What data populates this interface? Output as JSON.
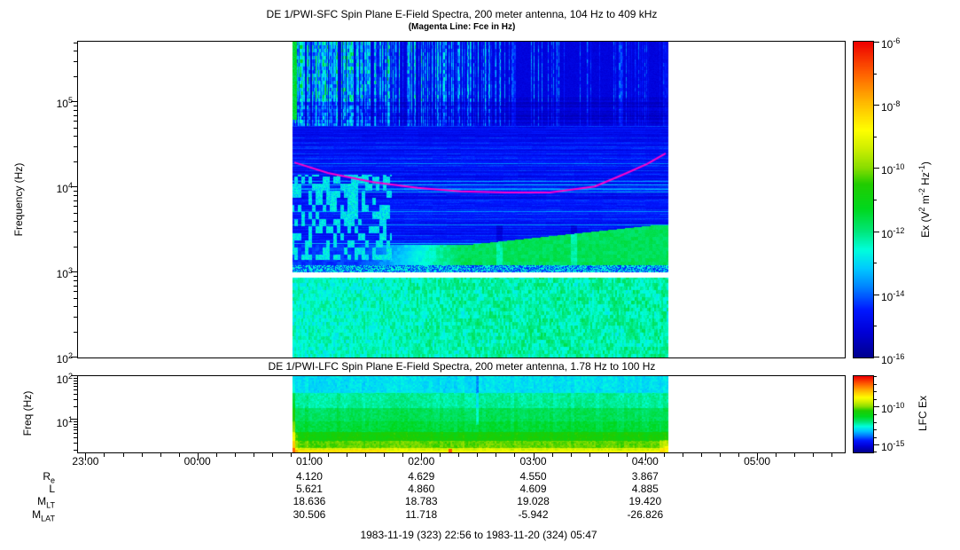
{
  "chart_data": [
    {
      "type": "heatmap",
      "id": "sfc",
      "title": "DE 1/PWI-SFC  Spin Plane E-Field Spectra, 200 meter antenna, 104 Hz to 409 kHz",
      "subtitle": "(Magenta Line: Fce in Hz)",
      "ylabel": "Frequency (Hz)",
      "yaxis": {
        "scale": "log",
        "range_hz": [
          100,
          409000
        ],
        "ticks": [
          {
            "log": 5,
            "label": "10^5"
          },
          {
            "log": 4,
            "label": "10^4"
          },
          {
            "log": 3,
            "label": "10^3"
          },
          {
            "log": 2,
            "label": "10^2"
          }
        ]
      },
      "xaxis": {
        "start": "22:56",
        "end": "05:47",
        "tick_labels": [
          "23:00",
          "00:00",
          "01:00",
          "02:00",
          "03:00",
          "04:00",
          "05:00"
        ],
        "minor_step_min": 10
      },
      "data_time_extent": {
        "start": "00:51",
        "end": "04:12"
      },
      "colorbar": {
        "label": "Ex (V^2 m^-2 Hz^-1)",
        "range_exp": [
          -16,
          -6
        ],
        "major_tick_exps": [
          -6,
          -8,
          -10,
          -12,
          -14,
          -16
        ],
        "tick_labels": [
          "10^-6",
          "10^-8",
          "10^-10",
          "10^-12",
          "10^-14",
          "10^-16"
        ]
      },
      "fce_line": {
        "label": "Fce in Hz",
        "color": "#FF00CC",
        "points_min_hz": [
          [
            116,
            19500
          ],
          [
            134,
            14700
          ],
          [
            158,
            11500
          ],
          [
            182,
            9800
          ],
          [
            205,
            8900
          ],
          [
            229,
            8660
          ],
          [
            253,
            8660
          ],
          [
            277,
            10200
          ],
          [
            292,
            14000
          ],
          [
            305,
            18700
          ],
          [
            315,
            25000
          ]
        ]
      },
      "features": {
        "white_gap_hz": [
          870,
          1000
        ],
        "regions": [
          {
            "name": "bottom-band",
            "freq_hz": [
              100,
              870
            ],
            "character": "cyan-green continuum ~1e-13 to 1e-12 V2/m2/Hz"
          },
          {
            "name": "lower-mid-green-mass",
            "freq_hz": [
              1000,
              3600
            ],
            "time": [
              "01:30",
              "04:12"
            ],
            "character": "green ~1e-12 emission growing after 01:30"
          },
          {
            "name": "mid-dark",
            "freq_hz": [
              3600,
              52000
            ],
            "character": "dark blue ~1e-15 with horizontal banding, cyan patches before 01:45"
          },
          {
            "name": "upper-speckle",
            "freq_hz": [
              52000,
              409000
            ],
            "character": "cyan/green vertical bursts over blue, dense 00:51-02:30, sparse after"
          }
        ]
      }
    },
    {
      "type": "heatmap",
      "id": "lfc",
      "title": "DE 1/PWI-LFC  Spin Plane E-Field Spectra, 200 meter antenna, 1.78 Hz to 100 Hz",
      "ylabel": "Freq (Hz)",
      "yaxis": {
        "scale": "log",
        "range_hz": [
          1.78,
          100
        ],
        "ticks": [
          {
            "log": 2,
            "label": "10^2"
          },
          {
            "log": 1,
            "label": "10^1"
          }
        ]
      },
      "colorbar": {
        "label": "LFC Ex",
        "range_exp": [
          -16,
          -6
        ],
        "major_tick_exps": [
          -10,
          -15
        ],
        "tick_labels": [
          "10^-10",
          "10^-15"
        ]
      },
      "banding": "horizontal bands: cyan 50-100 Hz, green 4-50 Hz, yellow-orange below 4 Hz; orange-red strip at data start, orange strip near data end"
    }
  ],
  "ephemeris": {
    "row_labels": [
      {
        "main": "R",
        "sub": "e"
      },
      {
        "main": "L",
        "sub": ""
      },
      {
        "main": "M",
        "sub": "LT"
      },
      {
        "main": "M",
        "sub": "LAT"
      }
    ],
    "columns": [
      "01:00",
      "02:00",
      "03:00",
      "04:00"
    ],
    "rows": [
      [
        "4.120",
        "4.629",
        "4.550",
        "3.867"
      ],
      [
        "5.621",
        "4.860",
        "4.609",
        "4.885"
      ],
      [
        "18.636",
        "18.783",
        "19.028",
        "19.420"
      ],
      [
        "30.506",
        "11.718",
        "-5.942",
        "-26.826"
      ]
    ]
  },
  "footer": {
    "date_range": "1983-11-19 (323) 22:56 to 1983-11-20 (324) 05:47"
  },
  "colors": {
    "background": "#FFFFFF",
    "axis": "#000000",
    "magenta_line": "#FF00CC",
    "colormap": [
      {
        "t": 0.0,
        "c": "#000090"
      },
      {
        "t": 0.08,
        "c": "#0000D8"
      },
      {
        "t": 0.15,
        "c": "#0018FF"
      },
      {
        "t": 0.22,
        "c": "#0080FF"
      },
      {
        "t": 0.28,
        "c": "#00C8FF"
      },
      {
        "t": 0.34,
        "c": "#00FFDC"
      },
      {
        "t": 0.4,
        "c": "#00E678"
      },
      {
        "t": 0.47,
        "c": "#00D81E"
      },
      {
        "t": 0.55,
        "c": "#22CC00"
      },
      {
        "t": 0.6,
        "c": "#88DD00"
      },
      {
        "t": 0.66,
        "c": "#CCEE00"
      },
      {
        "t": 0.72,
        "c": "#FFFF00"
      },
      {
        "t": 0.8,
        "c": "#FFC000"
      },
      {
        "t": 0.9,
        "c": "#FF6000"
      },
      {
        "t": 1.0,
        "c": "#EE0000"
      }
    ]
  }
}
